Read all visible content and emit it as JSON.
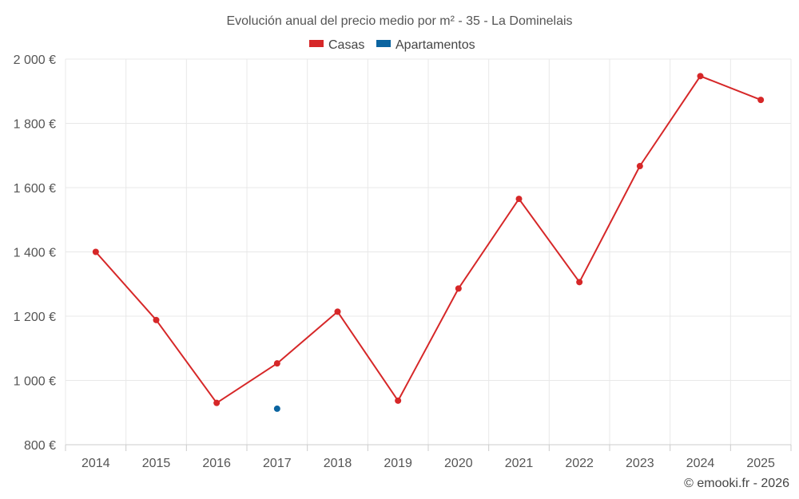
{
  "chart_data": {
    "type": "line",
    "title": "Evolución anual del precio medio por m² - 35 - La Dominelais",
    "categories": [
      "2014",
      "2015",
      "2016",
      "2017",
      "2018",
      "2019",
      "2020",
      "2021",
      "2022",
      "2023",
      "2024",
      "2025"
    ],
    "series": [
      {
        "name": "Casas",
        "color": "#d62728",
        "values": [
          1400,
          1188,
          930,
          1053,
          1214,
          937,
          1286,
          1565,
          1306,
          1667,
          1947,
          1873
        ]
      },
      {
        "name": "Apartamentos",
        "color": "#0b64a0",
        "values": [
          null,
          null,
          null,
          912,
          null,
          null,
          null,
          null,
          null,
          null,
          null,
          null
        ]
      }
    ],
    "ylim": [
      800,
      2000
    ],
    "yticks": [
      800,
      1000,
      1200,
      1400,
      1600,
      1800,
      2000
    ],
    "ytick_labels": [
      "800 €",
      "1 000 €",
      "1 200 €",
      "1 400 €",
      "1 600 €",
      "1 800 €",
      "2 000 €"
    ],
    "xlabel": "",
    "ylabel": "",
    "grid": true,
    "legend_position": "top-center"
  },
  "credit": "© emooki.fr - 2026"
}
